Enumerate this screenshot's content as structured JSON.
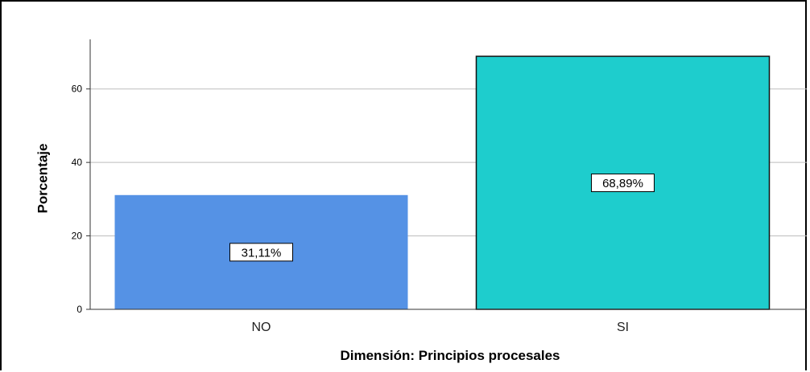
{
  "chart_data": {
    "type": "bar",
    "categories": [
      "NO",
      "SI"
    ],
    "values": [
      31.11,
      68.89
    ],
    "data_labels": [
      "31,11%",
      "68,89%"
    ],
    "colors": [
      "#5592E5",
      "#1ECDCD"
    ],
    "title": "",
    "xlabel": "Dimensión: Principios procesales",
    "ylabel": "Porcentaje",
    "ylim": [
      0,
      73.5
    ],
    "yticks": [
      0,
      20,
      40,
      60
    ],
    "ytick_labels": [
      "0",
      "20",
      "40",
      "60"
    ],
    "grid": true,
    "legend": false
  }
}
